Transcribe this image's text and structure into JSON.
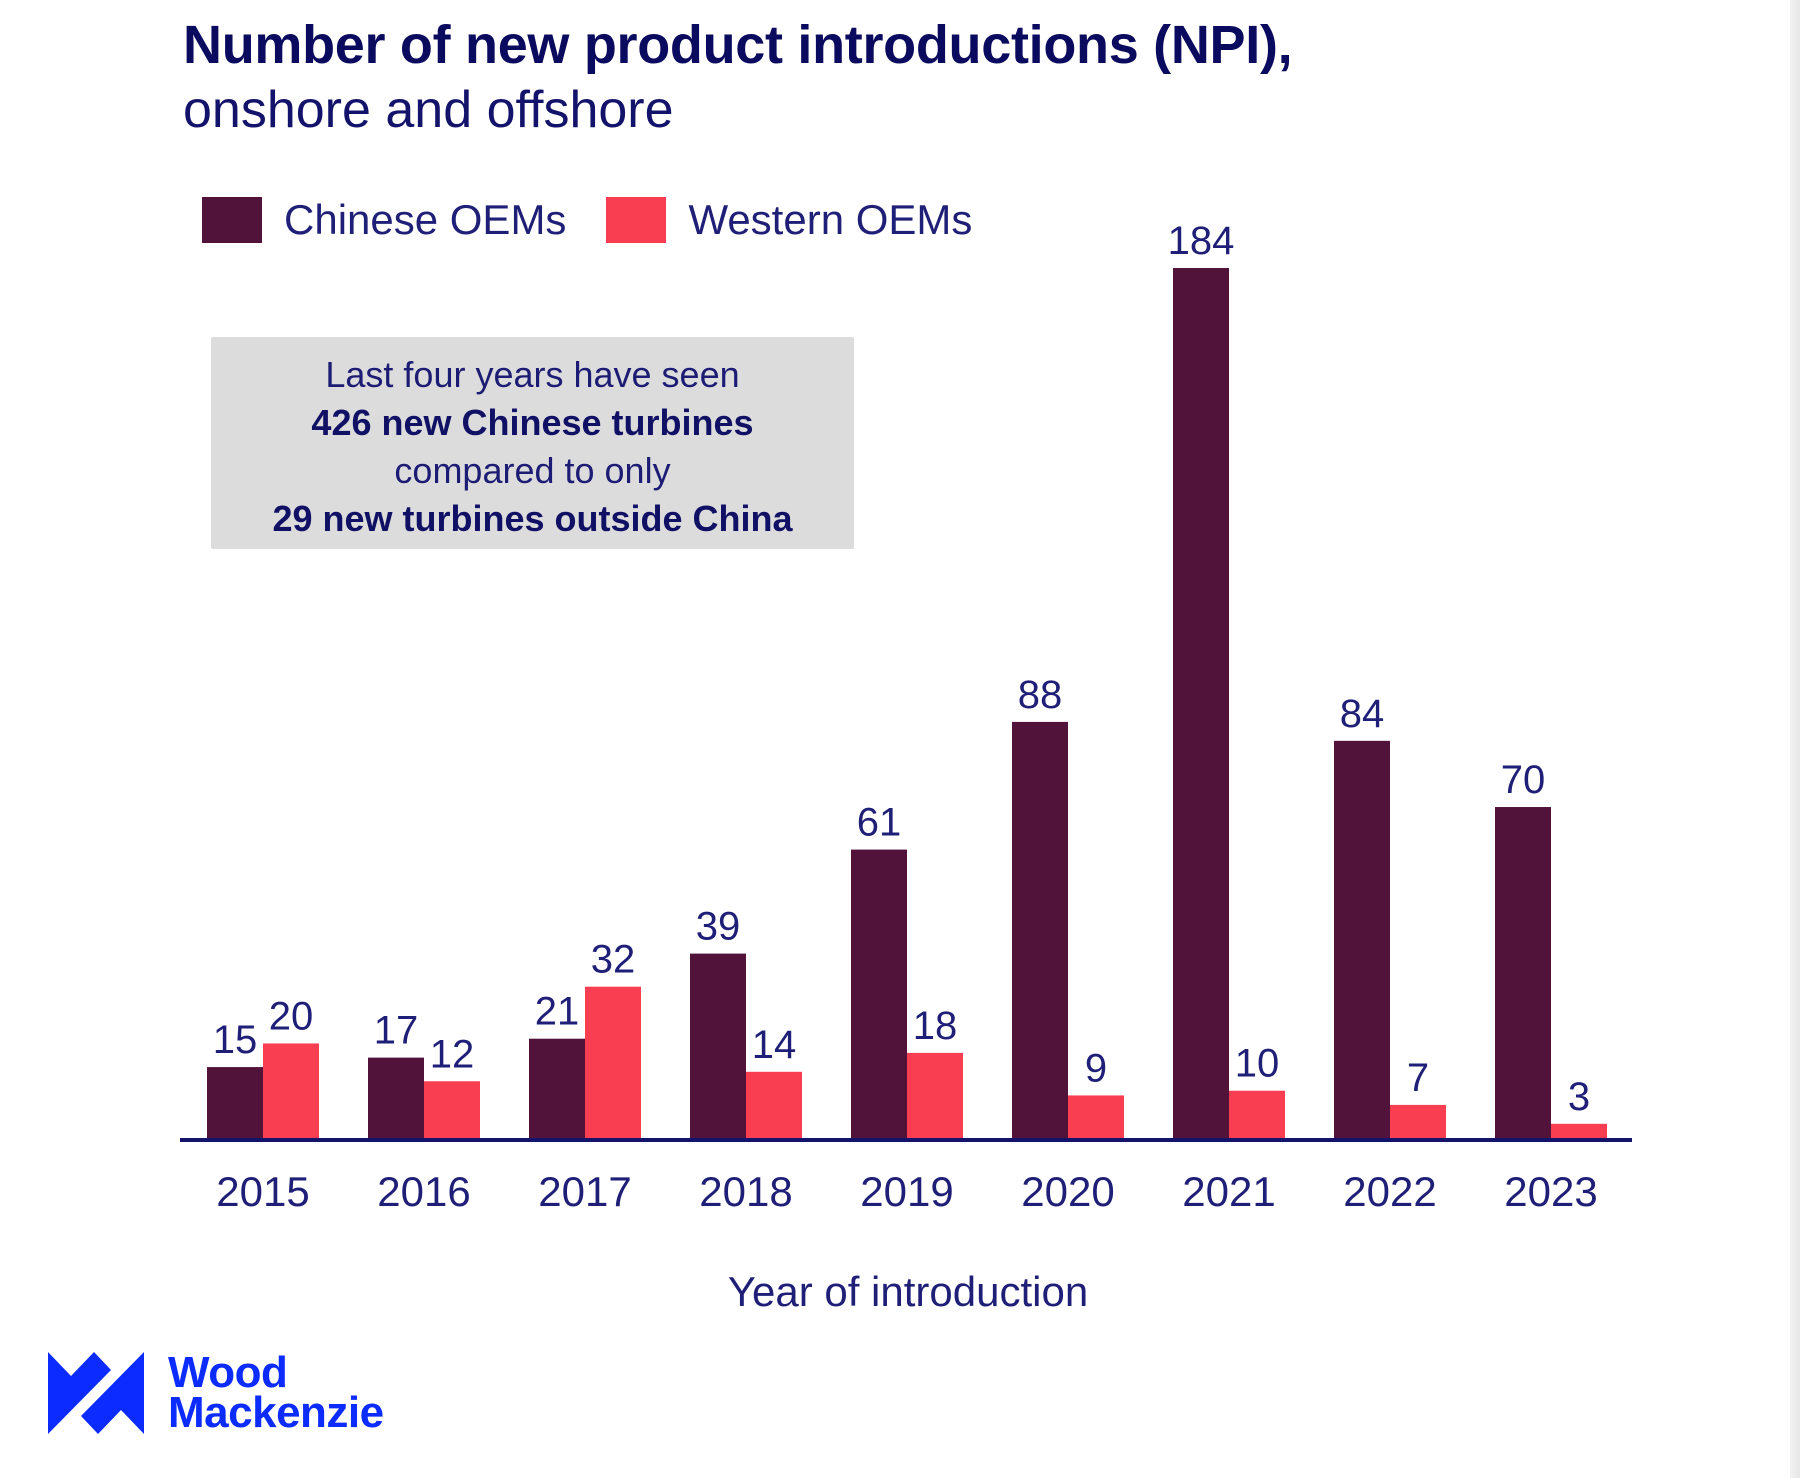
{
  "title": "Number of new product introductions (NPI),",
  "subtitle": "onshore and offshore",
  "note": {
    "line1": "Last four years have seen",
    "line2": "426 new Chinese turbines",
    "line3": "compared to only",
    "line4": "29 new turbines outside China"
  },
  "logo": {
    "line1": "Wood",
    "line2": "Mackenzie",
    "color": "#0b2bff"
  },
  "chart_data": {
    "type": "bar",
    "title": "Number of new product introductions (NPI), onshore and offshore",
    "xlabel": "Year of introduction",
    "ylabel": "",
    "ylim": [
      0,
      184
    ],
    "grid": false,
    "legend_position": "top-left",
    "categories": [
      "2015",
      "2016",
      "2017",
      "2018",
      "2019",
      "2020",
      "2021",
      "2022",
      "2023"
    ],
    "series": [
      {
        "name": "Chinese OEMs",
        "color": "#52133a",
        "values": [
          15,
          17,
          21,
          39,
          61,
          88,
          184,
          84,
          70
        ]
      },
      {
        "name": "Western OEMs",
        "color": "#f93e52",
        "values": [
          20,
          12,
          32,
          14,
          18,
          9,
          10,
          7,
          3
        ]
      }
    ],
    "axis_color": "#13136b",
    "label_color": "#1f1f78"
  }
}
